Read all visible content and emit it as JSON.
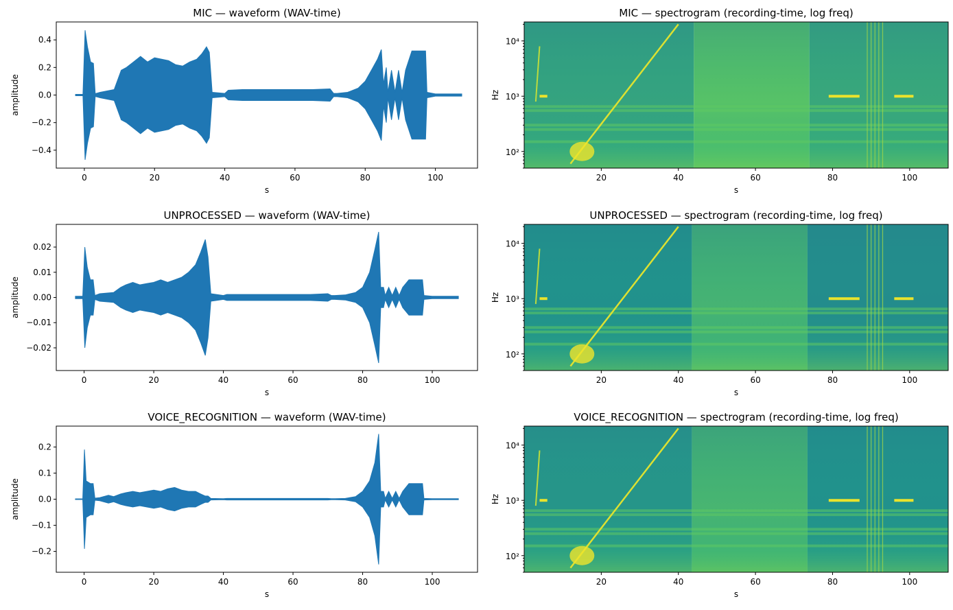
{
  "chart_data": [
    {
      "type": "line",
      "title": "MIC — waveform (WAV-time)",
      "xlabel": "s",
      "ylabel": "amplitude",
      "xlim": [
        -8,
        112
      ],
      "ylim": [
        -0.53,
        0.53
      ],
      "xticks": [
        0,
        20,
        40,
        60,
        80,
        100
      ],
      "xtick_labels": [
        "0",
        "20",
        "40",
        "60",
        "80",
        "100"
      ],
      "yticks": [
        0.4,
        0.2,
        0.0,
        -0.2,
        -0.4
      ],
      "ytick_labels": [
        "0.4",
        "0.2",
        "0.0",
        "−0.2",
        "−0.4"
      ],
      "color": "#1f77b4",
      "grid": false,
      "x": [
        -2.5,
        -0.4,
        0.2,
        0.9,
        1.8,
        2.6,
        3.1,
        4.5,
        8.5,
        10.5,
        12,
        14,
        16,
        18,
        20,
        22,
        24,
        26,
        28,
        30,
        32,
        33.5,
        34.8,
        35.6,
        36.4,
        40,
        41,
        45,
        50,
        55,
        60,
        65,
        70,
        71,
        72,
        75,
        78,
        80,
        82,
        83.5,
        84.6,
        85.2,
        86,
        86.5,
        87.5,
        88.5,
        89.5,
        90.5,
        91.5,
        93.3,
        94.5,
        95.5,
        96.5,
        97.2,
        97.6,
        100,
        104,
        107.5
      ],
      "values": [
        0.005,
        0.005,
        0.47,
        0.35,
        0.24,
        0.23,
        0.01,
        0.02,
        0.04,
        0.18,
        0.2,
        0.24,
        0.28,
        0.24,
        0.27,
        0.26,
        0.25,
        0.22,
        0.21,
        0.24,
        0.26,
        0.3,
        0.35,
        0.31,
        0.02,
        0.012,
        0.035,
        0.04,
        0.04,
        0.04,
        0.04,
        0.04,
        0.045,
        0.012,
        0.012,
        0.02,
        0.05,
        0.1,
        0.19,
        0.26,
        0.33,
        0.08,
        0.2,
        0.02,
        0.18,
        0.02,
        0.18,
        0.02,
        0.18,
        0.32,
        0.32,
        0.32,
        0.32,
        0.32,
        0.02,
        0.008,
        0.008,
        0.008
      ]
    },
    {
      "type": "heatmap",
      "title": "MIC — spectrogram (recording-time, log freq)",
      "xlabel": "s",
      "ylabel": "Hz",
      "xlim": [
        0,
        110
      ],
      "ylim": [
        50,
        22050
      ],
      "yscale": "log",
      "xticks": [
        20,
        40,
        60,
        80,
        100
      ],
      "xtick_labels": [
        "20",
        "40",
        "60",
        "80",
        "100"
      ],
      "yticks": [
        100,
        1000,
        10000
      ],
      "ytick_labels": [
        "10²",
        "10³",
        "10⁴"
      ],
      "colormap": "viridis",
      "bands": [
        {
          "x": [
            0,
            44
          ],
          "level": 0.58
        },
        {
          "x": [
            44,
            74
          ],
          "level": 0.72
        },
        {
          "x": [
            74,
            110
          ],
          "level": 0.6
        }
      ]
    },
    {
      "type": "line",
      "title": "UNPROCESSED — waveform (WAV-time)",
      "xlabel": "s",
      "ylabel": "amplitude",
      "xlim": [
        -8,
        113
      ],
      "ylim": [
        -0.029,
        0.029
      ],
      "xticks": [
        0,
        20,
        40,
        60,
        80,
        100
      ],
      "xtick_labels": [
        "0",
        "20",
        "40",
        "60",
        "80",
        "100"
      ],
      "yticks": [
        0.02,
        0.01,
        0.0,
        -0.01,
        -0.02
      ],
      "ytick_labels": [
        "0.02",
        "0.01",
        "0.00",
        "−0.01",
        "−0.02"
      ],
      "color": "#1f77b4",
      "grid": false,
      "x": [
        -2.5,
        -0.4,
        0.2,
        0.9,
        1.8,
        2.6,
        3.1,
        4.5,
        8.5,
        10.5,
        12,
        14,
        16,
        18,
        20,
        22,
        24,
        26,
        28,
        30,
        32,
        33.5,
        34.8,
        35.6,
        36.4,
        40,
        41,
        45,
        50,
        55,
        60,
        65,
        70,
        71,
        72,
        75,
        78,
        80,
        82,
        83.5,
        84.6,
        85.2,
        86,
        86.5,
        87.5,
        88.5,
        89.5,
        90.5,
        91.5,
        93.3,
        94.5,
        95.5,
        96.5,
        97.2,
        97.6,
        100,
        104,
        107.5
      ],
      "values": [
        0.0005,
        0.0005,
        0.02,
        0.012,
        0.007,
        0.007,
        0.0008,
        0.0015,
        0.002,
        0.004,
        0.005,
        0.006,
        0.005,
        0.0055,
        0.006,
        0.007,
        0.006,
        0.007,
        0.008,
        0.01,
        0.013,
        0.018,
        0.023,
        0.016,
        0.0015,
        0.0008,
        0.0012,
        0.0012,
        0.0012,
        0.0012,
        0.0012,
        0.0012,
        0.0015,
        0.0008,
        0.0008,
        0.001,
        0.002,
        0.004,
        0.01,
        0.019,
        0.026,
        0.004,
        0.004,
        0.0008,
        0.004,
        0.0008,
        0.004,
        0.0008,
        0.004,
        0.007,
        0.007,
        0.007,
        0.007,
        0.007,
        0.0008,
        0.0005,
        0.0005,
        0.0005
      ]
    },
    {
      "type": "heatmap",
      "title": "UNPROCESSED — spectrogram (recording-time, log freq)",
      "xlabel": "s",
      "ylabel": "Hz",
      "xlim": [
        0,
        110
      ],
      "ylim": [
        50,
        22050
      ],
      "yscale": "log",
      "xticks": [
        20,
        40,
        60,
        80,
        100
      ],
      "xtick_labels": [
        "20",
        "40",
        "60",
        "80",
        "100"
      ],
      "yticks": [
        100,
        1000,
        10000
      ],
      "ytick_labels": [
        "10²",
        "10³",
        "10⁴"
      ],
      "colormap": "viridis",
      "bands": [
        {
          "x": [
            0,
            43.5
          ],
          "level": 0.5
        },
        {
          "x": [
            43.5,
            73.5
          ],
          "level": 0.65
        },
        {
          "x": [
            73.5,
            110
          ],
          "level": 0.48
        }
      ]
    },
    {
      "type": "line",
      "title": "VOICE_RECOGNITION — waveform (WAV-time)",
      "xlabel": "s",
      "ylabel": "amplitude",
      "xlim": [
        -8,
        113
      ],
      "ylim": [
        -0.28,
        0.28
      ],
      "xticks": [
        0,
        20,
        40,
        60,
        80,
        100
      ],
      "xtick_labels": [
        "0",
        "20",
        "40",
        "60",
        "80",
        "100"
      ],
      "yticks": [
        0.2,
        0.1,
        0.0,
        -0.1,
        -0.2
      ],
      "ytick_labels": [
        "0.2",
        "0.1",
        "0.0",
        "−0.1",
        "−0.2"
      ],
      "color": "#1f77b4",
      "grid": false,
      "x": [
        -2.5,
        -0.4,
        0.1,
        0.6,
        1.8,
        2.6,
        3.1,
        4.5,
        7,
        8.5,
        10.5,
        12,
        14,
        16,
        18,
        20,
        22,
        24,
        26,
        28,
        30,
        32,
        33.5,
        34.8,
        35.6,
        36.4,
        40,
        41,
        45,
        50,
        55,
        60,
        65,
        70,
        71,
        72,
        75,
        78,
        80,
        82,
        83.5,
        84.6,
        85.2,
        86,
        86.5,
        87.5,
        88.5,
        89.5,
        90.5,
        91.5,
        93.3,
        94.5,
        95.5,
        96.5,
        97.2,
        97.6,
        100,
        104,
        107.5
      ],
      "values": [
        0.001,
        0.001,
        0.19,
        0.07,
        0.06,
        0.06,
        0.004,
        0.006,
        0.015,
        0.01,
        0.02,
        0.025,
        0.03,
        0.025,
        0.03,
        0.035,
        0.03,
        0.04,
        0.045,
        0.035,
        0.03,
        0.03,
        0.02,
        0.012,
        0.012,
        0.003,
        0.002,
        0.003,
        0.003,
        0.003,
        0.003,
        0.003,
        0.003,
        0.003,
        0.002,
        0.002,
        0.003,
        0.01,
        0.03,
        0.07,
        0.14,
        0.25,
        0.03,
        0.03,
        0.003,
        0.03,
        0.003,
        0.03,
        0.003,
        0.03,
        0.06,
        0.06,
        0.06,
        0.06,
        0.06,
        0.003,
        0.002,
        0.002,
        0.002
      ]
    },
    {
      "type": "heatmap",
      "title": "VOICE_RECOGNITION — spectrogram (recording-time, log freq)",
      "xlabel": "s",
      "ylabel": "Hz",
      "xlim": [
        0,
        110
      ],
      "ylim": [
        50,
        22050
      ],
      "yscale": "log",
      "xticks": [
        20,
        40,
        60,
        80,
        100
      ],
      "xtick_labels": [
        "20",
        "40",
        "60",
        "80",
        "100"
      ],
      "yticks": [
        100,
        1000,
        10000
      ],
      "ytick_labels": [
        "10²",
        "10³",
        "10⁴"
      ],
      "colormap": "viridis",
      "bands": [
        {
          "x": [
            0,
            43.5
          ],
          "level": 0.52
        },
        {
          "x": [
            43.5,
            73.5
          ],
          "level": 0.66
        },
        {
          "x": [
            73.5,
            110
          ],
          "level": 0.5
        }
      ]
    }
  ]
}
